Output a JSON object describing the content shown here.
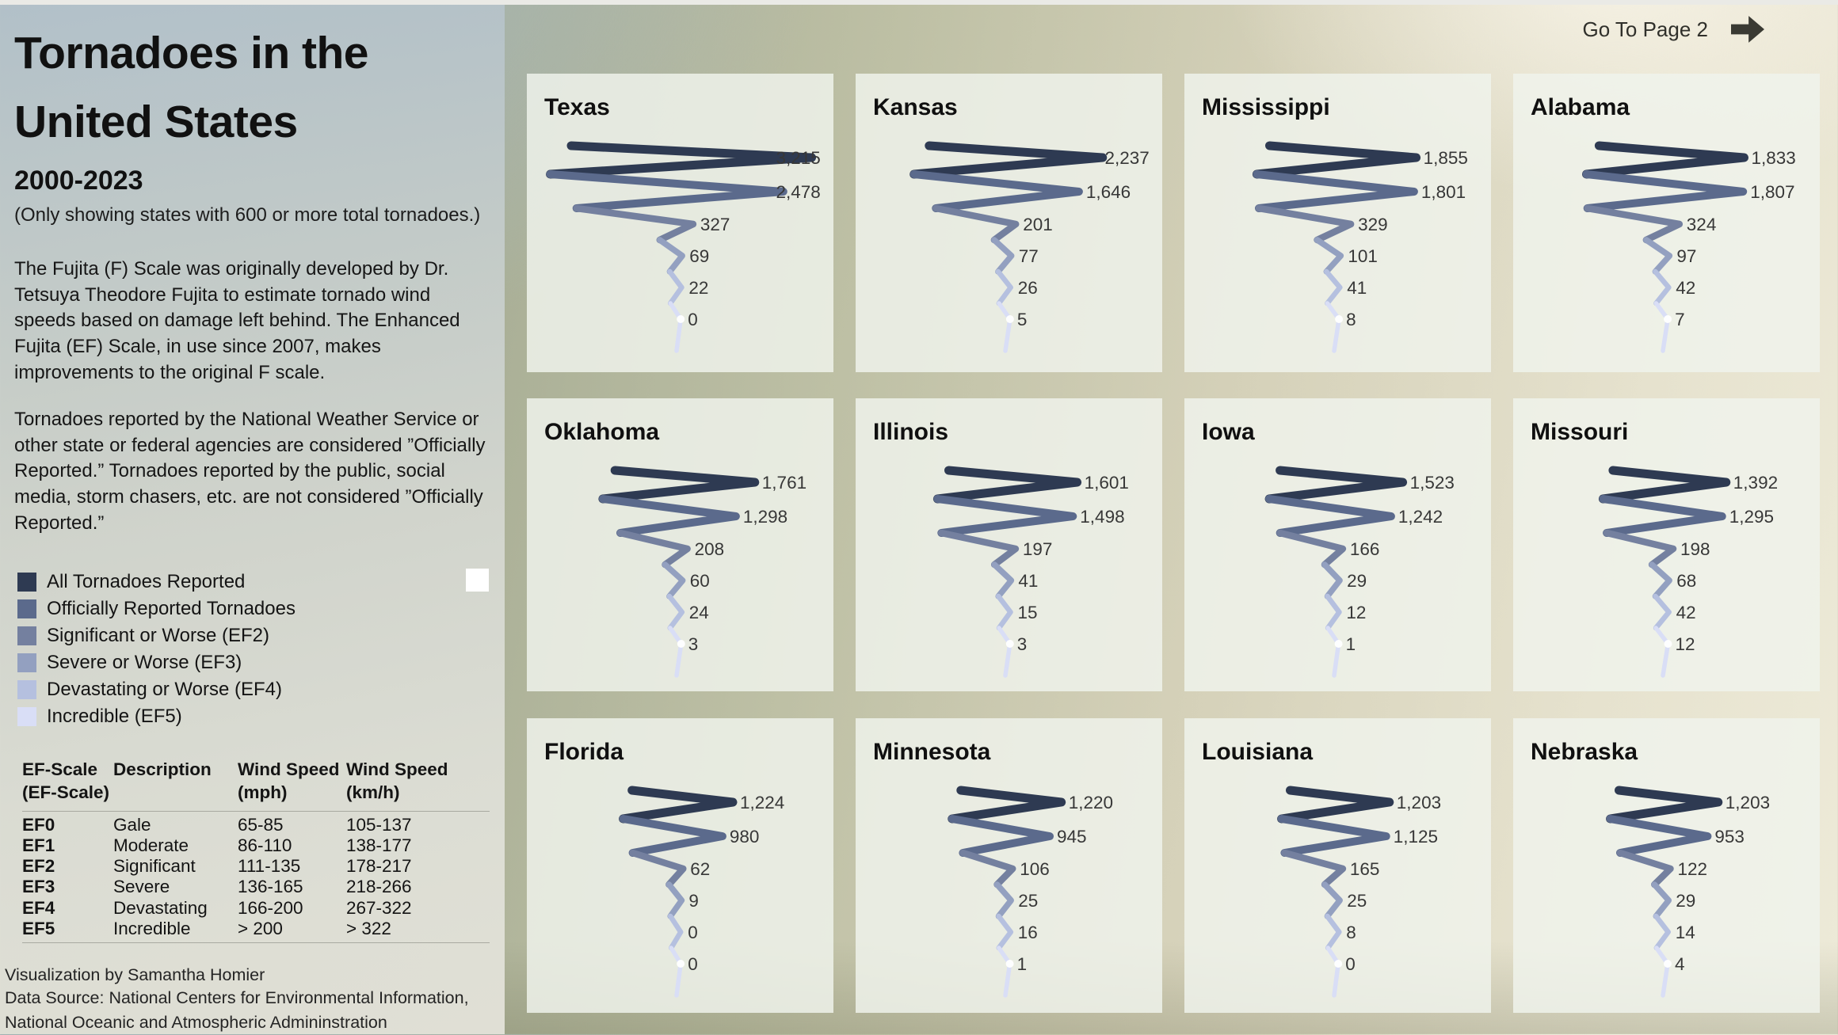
{
  "page": {
    "title_line1": "Tornadoes in the",
    "title_line2": "United States",
    "subtitle": "2000-2023",
    "note": "(Only showing states with 600 or more total tornadoes.)",
    "para1": "The Fujita (F) Scale was originally developed by Dr. Tetsuya Theodore Fujita to estimate tornado wind speeds based on damage left behind. The Enhanced Fujita (EF) Scale, in use since 2007, makes improvements to the original F scale.",
    "para2": "Tornadoes reported by the National Weather Service or other state or federal agencies are considered  ”Officially Reported.” Tornadoes reported by the public, social media, storm chasers, etc. are not considered ”Officially Reported.”",
    "credit1": "Visualization by Samantha Homier",
    "credit2": "Data Source: National Centers for Environmental Information, National Oceanic and Atmospheric Admininstration"
  },
  "nav": {
    "go_to_page_label": "Go To Page 2",
    "arrow_icon": "right-arrow"
  },
  "legend": {
    "items": [
      "All Tornadoes Reported",
      "Officially Reported Tornadoes",
      "Significant or Worse (EF2)",
      "Severe or Worse (EF3)",
      "Devastating or Worse (EF4)",
      "Incredible (EF5)"
    ]
  },
  "ef_table": {
    "headers": [
      [
        "EF-Scale",
        "(EF-Scale)"
      ],
      [
        "Description",
        ""
      ],
      [
        "Wind Speed",
        "(mph)"
      ],
      [
        "Wind Speed",
        "(km/h)"
      ]
    ],
    "rows": [
      [
        "EF0",
        "Gale",
        "65-85",
        "105-137"
      ],
      [
        "EF1",
        "Moderate",
        "86-110",
        "138-177"
      ],
      [
        "EF2",
        "Significant",
        "111-135",
        "178-217"
      ],
      [
        "EF3",
        "Severe",
        "136-165",
        "218-266"
      ],
      [
        "EF4",
        "Devastating",
        "166-200",
        "267-322"
      ],
      [
        "EF5",
        "Incredible",
        "> 200",
        "> 322"
      ]
    ]
  },
  "chart_data": {
    "type": "line",
    "variant": "tornado-funnel-small-multiples",
    "title": "Tornadoes in the United States",
    "subtitle": "2000-2023",
    "categories": [
      "All Tornadoes Reported",
      "Officially Reported Tornadoes",
      "Significant or Worse (EF2)",
      "Severe or Worse (EF3)",
      "Devastating or Worse (EF4)",
      "Incredible (EF5)"
    ],
    "palette": [
      "#2e3a52",
      "#5b6a8c",
      "#74809f",
      "#93a0c0",
      "#b5c0df",
      "#d9def6"
    ],
    "legend_position": "left",
    "series": [
      {
        "name": "Texas",
        "values": [
          3215,
          2478,
          327,
          69,
          22,
          0
        ]
      },
      {
        "name": "Kansas",
        "values": [
          2237,
          1646,
          201,
          77,
          26,
          5
        ]
      },
      {
        "name": "Mississippi",
        "values": [
          1855,
          1801,
          329,
          101,
          41,
          8
        ]
      },
      {
        "name": "Alabama",
        "values": [
          1833,
          1807,
          324,
          97,
          42,
          7
        ]
      },
      {
        "name": "Oklahoma",
        "values": [
          1761,
          1298,
          208,
          60,
          24,
          3
        ]
      },
      {
        "name": "Illinois",
        "values": [
          1601,
          1498,
          197,
          41,
          15,
          3
        ]
      },
      {
        "name": "Iowa",
        "values": [
          1523,
          1242,
          166,
          29,
          12,
          1
        ]
      },
      {
        "name": "Missouri",
        "values": [
          1392,
          1295,
          198,
          68,
          42,
          12
        ]
      },
      {
        "name": "Florida",
        "values": [
          1224,
          980,
          62,
          9,
          0,
          0
        ]
      },
      {
        "name": "Minnesota",
        "values": [
          1220,
          945,
          106,
          25,
          16,
          1
        ]
      },
      {
        "name": "Louisiana",
        "values": [
          1203,
          1125,
          165,
          25,
          8,
          0
        ]
      },
      {
        "name": "Nebraska",
        "values": [
          1203,
          953,
          122,
          29,
          14,
          4
        ]
      }
    ]
  }
}
